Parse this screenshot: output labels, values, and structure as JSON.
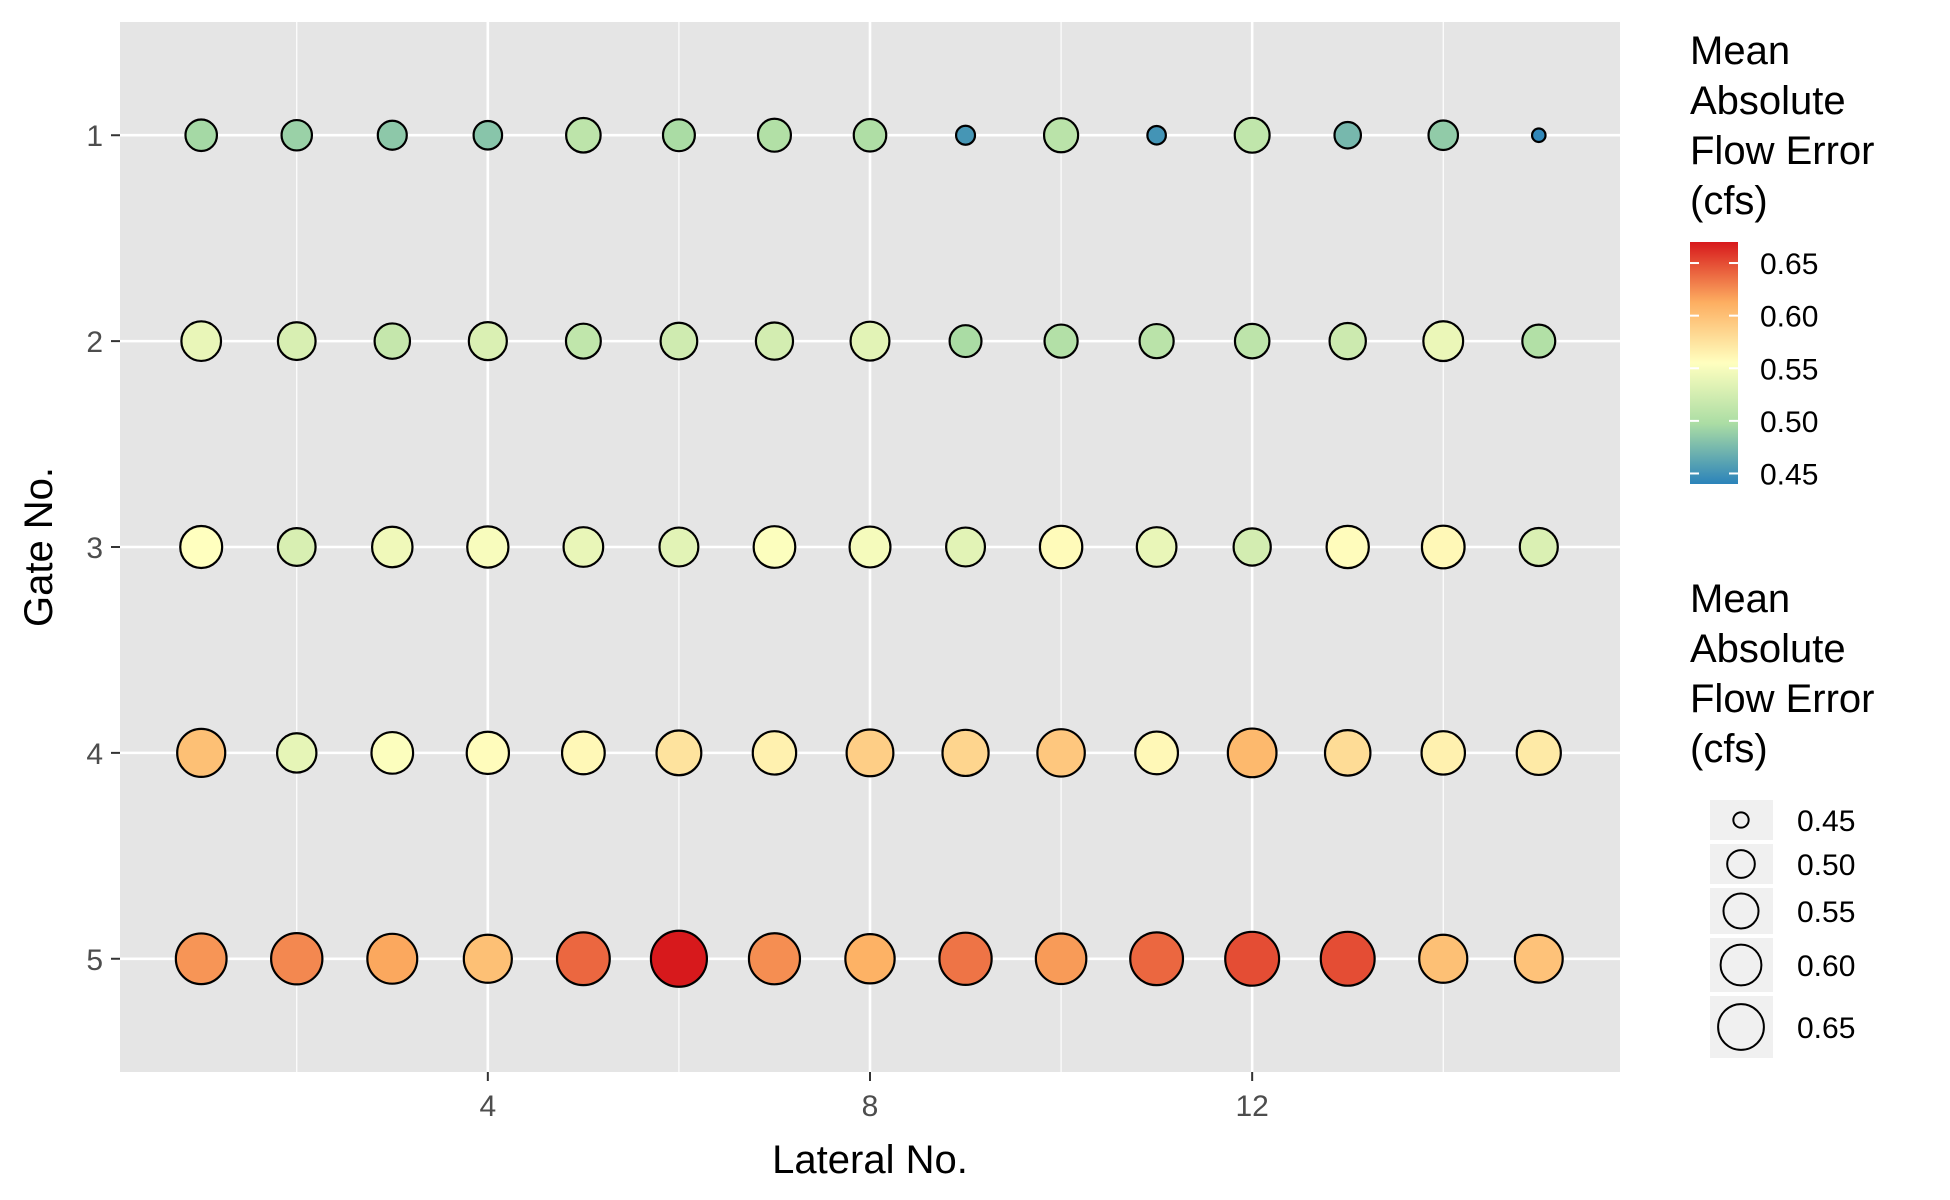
{
  "chart_data": {
    "type": "scatter",
    "xlabel": "Lateral No.",
    "ylabel": "Gate No.",
    "xlim": [
      0.15,
      15.85
    ],
    "ylim": [
      0.45,
      5.55
    ],
    "y_reversed": true,
    "x_ticks": [
      4,
      8,
      12
    ],
    "x_tick_labels": [
      "4",
      "8",
      "12"
    ],
    "y_ticks": [
      1,
      2,
      3,
      4,
      5
    ],
    "y_tick_labels": [
      "1",
      "2",
      "3",
      "4",
      "5"
    ],
    "x_minor_gridlines": [
      2,
      6,
      10,
      14
    ],
    "grid": true,
    "panel_background": "#e5e5e5",
    "color_scale": {
      "title_lines": [
        "Mean",
        "Absolute",
        "Flow Error",
        "(cfs)"
      ],
      "palette": "Spectral",
      "stops": [
        "#2b83ba",
        "#abdda4",
        "#ffffbf",
        "#fdae61",
        "#d7191c"
      ],
      "range": [
        0.44,
        0.67
      ],
      "breaks": [
        0.45,
        0.5,
        0.55,
        0.6,
        0.65
      ],
      "break_labels": [
        "0.45",
        "0.50",
        "0.55",
        "0.60",
        "0.65"
      ]
    },
    "size_scale": {
      "title_lines": [
        "Mean",
        "Absolute",
        "Flow Error",
        "(cfs)"
      ],
      "breaks": [
        0.45,
        0.5,
        0.55,
        0.6,
        0.65
      ],
      "break_labels": [
        "0.45",
        "0.50",
        "0.55",
        "0.60",
        "0.65"
      ]
    },
    "x": [
      1,
      2,
      3,
      4,
      5,
      6,
      7,
      8,
      9,
      10,
      11,
      12,
      13,
      14,
      15
    ],
    "series": [
      {
        "gate": 1,
        "values": [
          0.495,
          0.49,
          0.484,
          0.482,
          0.51,
          0.497,
          0.502,
          0.5,
          0.452,
          0.508,
          0.451,
          0.512,
          0.474,
          0.486,
          0.443
        ]
      },
      {
        "gate": 2,
        "values": [
          0.54,
          0.528,
          0.515,
          0.53,
          0.512,
          0.522,
          0.525,
          0.535,
          0.497,
          0.503,
          0.508,
          0.51,
          0.52,
          0.541,
          0.502
        ]
      },
      {
        "gate": 3,
        "values": [
          0.555,
          0.528,
          0.545,
          0.55,
          0.54,
          0.535,
          0.553,
          0.548,
          0.535,
          0.558,
          0.54,
          0.525,
          0.557,
          0.56,
          0.53
        ]
      },
      {
        "gate": 4,
        "values": [
          0.6,
          0.538,
          0.553,
          0.557,
          0.56,
          0.575,
          0.565,
          0.59,
          0.585,
          0.595,
          0.56,
          0.605,
          0.58,
          0.565,
          0.57
        ]
      },
      {
        "gate": 5,
        "values": [
          0.622,
          0.627,
          0.615,
          0.6,
          0.64,
          0.67,
          0.625,
          0.61,
          0.635,
          0.62,
          0.64,
          0.65,
          0.65,
          0.6,
          0.598
        ]
      }
    ]
  }
}
